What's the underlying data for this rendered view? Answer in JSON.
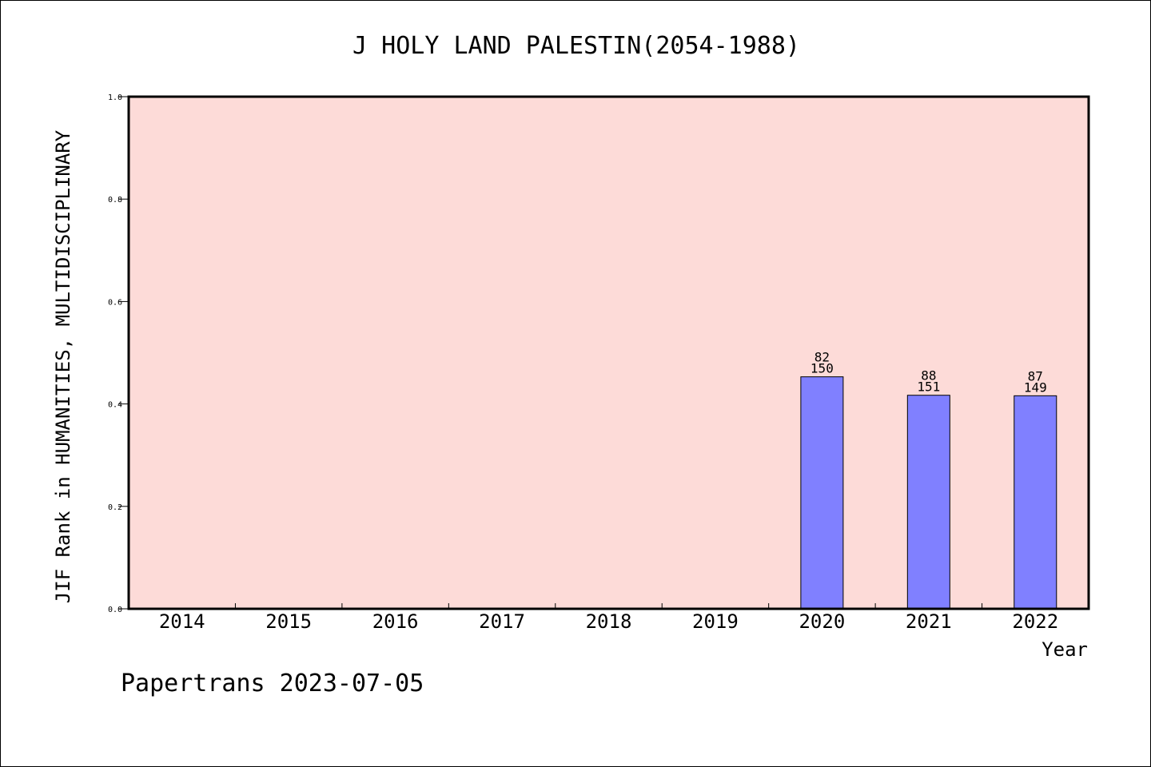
{
  "chart_data": {
    "type": "bar",
    "title": "J HOLY LAND PALESTIN(2054-1988)",
    "xlabel": "Year",
    "ylabel": "JIF Rank in HUMANITIES, MULTIDISCIPLINARY",
    "ylim": [
      0,
      1.0
    ],
    "yticks": [
      "0.0",
      "0.2",
      "0.4",
      "0.6",
      "0.8",
      "1.0"
    ],
    "categories": [
      "2014",
      "2015",
      "2016",
      "2017",
      "2018",
      "2019",
      "2020",
      "2021",
      "2022"
    ],
    "values": [
      null,
      null,
      null,
      null,
      null,
      null,
      0.453,
      0.417,
      0.416
    ],
    "bar_labels": [
      null,
      null,
      null,
      null,
      null,
      null,
      {
        "rank": "82",
        "total": "150"
      },
      {
        "rank": "88",
        "total": "151"
      },
      {
        "rank": "87",
        "total": "149"
      }
    ],
    "grid": false,
    "colors": {
      "bar": "#8080ff",
      "plot_background": "#fddbd8"
    }
  },
  "footer": "Papertrans 2023-07-05"
}
